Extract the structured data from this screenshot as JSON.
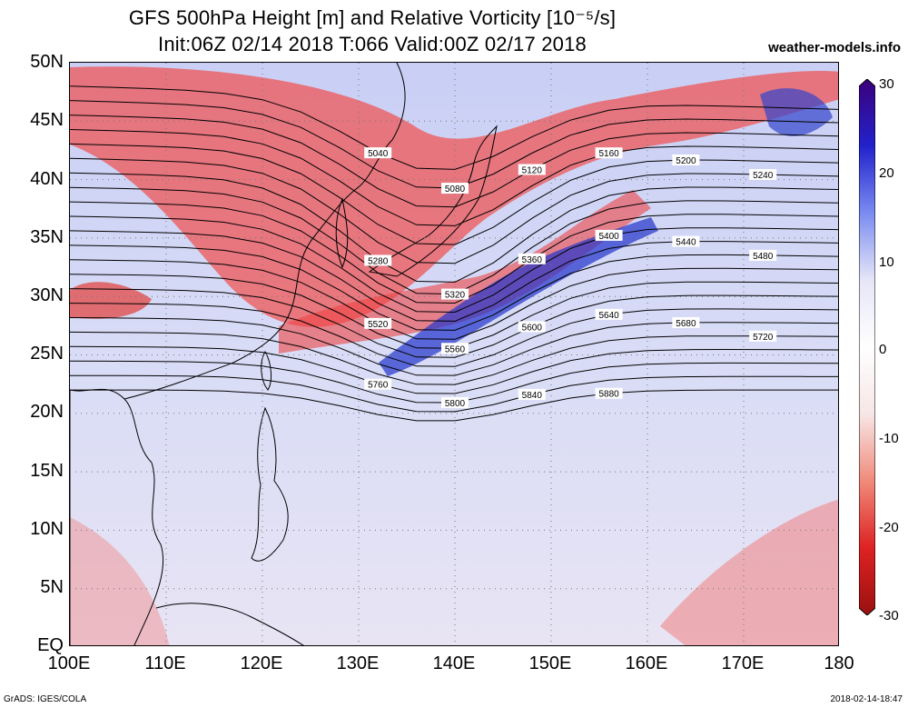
{
  "title": {
    "line1": "GFS 500hPa Height [m] and Relative Vorticity [10⁻⁵/s]",
    "line2": "Init:06Z 02/14 2018 T:066 Valid:00Z 02/17 2018",
    "site": "weather-models.info"
  },
  "footer": {
    "left": "GrADS: IGES/COLA",
    "right": "2018-02-14-18:47"
  },
  "axes": {
    "lat_labels": [
      "50N",
      "45N",
      "40N",
      "35N",
      "30N",
      "25N",
      "20N",
      "15N",
      "10N",
      "5N",
      "EQ"
    ],
    "lon_labels": [
      "100E",
      "110E",
      "120E",
      "130E",
      "140E",
      "150E",
      "160E",
      "170E",
      "180"
    ]
  },
  "colorbar": {
    "ticks": [
      "30",
      "20",
      "10",
      "0",
      "-10",
      "-20",
      "-30"
    ],
    "colors": [
      "#3b007a",
      "#2222cc",
      "#7a8cf0",
      "#e6e6f7",
      "#ffffff",
      "#f7e6e6",
      "#f08a7a",
      "#dd2222",
      "#9a1010"
    ]
  },
  "contours": [
    {
      "label": "5040",
      "value": 5040
    },
    {
      "label": "5080",
      "value": 5080
    },
    {
      "label": "5120",
      "value": 5120
    },
    {
      "label": "5160",
      "value": 5160
    },
    {
      "label": "5200",
      "value": 5200
    },
    {
      "label": "5240",
      "value": 5240
    },
    {
      "label": "5280",
      "value": 5280
    },
    {
      "label": "5320",
      "value": 5320
    },
    {
      "label": "5360",
      "value": 5360
    },
    {
      "label": "5400",
      "value": 5400
    },
    {
      "label": "5440",
      "value": 5440
    },
    {
      "label": "5480",
      "value": 5480
    },
    {
      "label": "5520",
      "value": 5520
    },
    {
      "label": "5560",
      "value": 5560
    },
    {
      "label": "5600",
      "value": 5600
    },
    {
      "label": "5640",
      "value": 5640
    },
    {
      "label": "5680",
      "value": 5680
    },
    {
      "label": "5720",
      "value": 5720
    },
    {
      "label": "5760",
      "value": 5760
    },
    {
      "label": "5800",
      "value": 5800
    },
    {
      "label": "5840",
      "value": 5840
    },
    {
      "label": "5880",
      "value": 5880
    }
  ]
}
